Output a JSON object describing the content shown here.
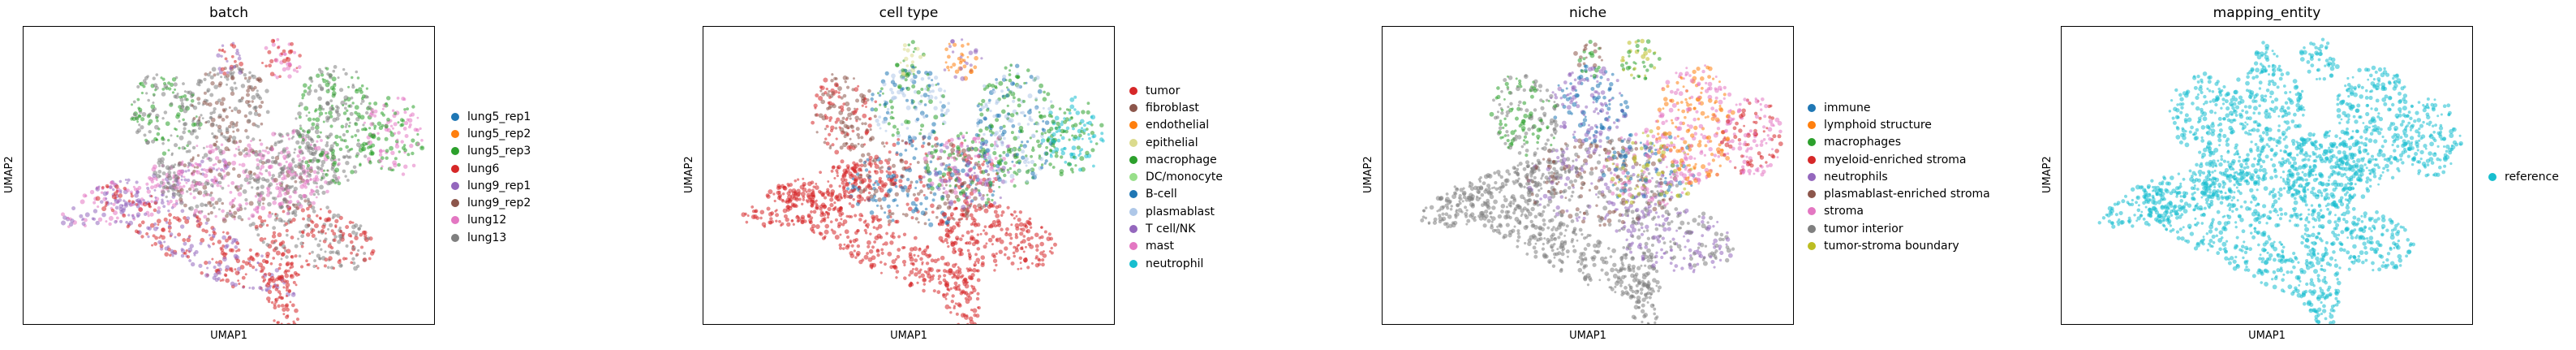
{
  "chart_data": [
    {
      "type": "scatter",
      "title": "batch",
      "xlabel": "UMAP1",
      "ylabel": "UMAP2",
      "legend_position": "right",
      "grid": false,
      "series": [
        {
          "name": "lung5_rep1",
          "color": "#1f77b4"
        },
        {
          "name": "lung5_rep2",
          "color": "#ff7f0e"
        },
        {
          "name": "lung5_rep3",
          "color": "#2ca02c"
        },
        {
          "name": "lung6",
          "color": "#d62728"
        },
        {
          "name": "lung9_rep1",
          "color": "#9467bd"
        },
        {
          "name": "lung9_rep2",
          "color": "#8c564b"
        },
        {
          "name": "lung12",
          "color": "#e377c2"
        },
        {
          "name": "lung13",
          "color": "#7f7f7f"
        }
      ]
    },
    {
      "type": "scatter",
      "title": "cell type",
      "xlabel": "UMAP1",
      "ylabel": "UMAP2",
      "legend_position": "right",
      "grid": false,
      "series": [
        {
          "name": "tumor",
          "color": "#d62728"
        },
        {
          "name": "fibroblast",
          "color": "#8c564b"
        },
        {
          "name": "endothelial",
          "color": "#ff7f0e"
        },
        {
          "name": "epithelial",
          "color": "#dbdb8d"
        },
        {
          "name": "macrophage",
          "color": "#2ca02c"
        },
        {
          "name": "DC/monocyte",
          "color": "#98df8a"
        },
        {
          "name": "B-cell",
          "color": "#1f77b4"
        },
        {
          "name": "plasmablast",
          "color": "#aec7e8"
        },
        {
          "name": "T cell/NK",
          "color": "#9467bd"
        },
        {
          "name": "mast",
          "color": "#e377c2"
        },
        {
          "name": "neutrophil",
          "color": "#17becf"
        }
      ]
    },
    {
      "type": "scatter",
      "title": "niche",
      "xlabel": "UMAP1",
      "ylabel": "UMAP2",
      "legend_position": "right",
      "grid": false,
      "series": [
        {
          "name": "immune",
          "color": "#1f77b4"
        },
        {
          "name": "lymphoid structure",
          "color": "#ff7f0e"
        },
        {
          "name": "macrophages",
          "color": "#2ca02c"
        },
        {
          "name": "myeloid-enriched stroma",
          "color": "#d62728"
        },
        {
          "name": "neutrophils",
          "color": "#9467bd"
        },
        {
          "name": "plasmablast-enriched stroma",
          "color": "#8c564b"
        },
        {
          "name": "stroma",
          "color": "#e377c2"
        },
        {
          "name": "tumor interior",
          "color": "#7f7f7f"
        },
        {
          "name": "tumor-stroma boundary",
          "color": "#bcbd22"
        }
      ]
    },
    {
      "type": "scatter",
      "title": "mapping_entity",
      "xlabel": "UMAP1",
      "ylabel": "UMAP2",
      "legend_position": "right",
      "grid": false,
      "series": [
        {
          "name": "reference",
          "color": "#17becf"
        }
      ]
    }
  ]
}
